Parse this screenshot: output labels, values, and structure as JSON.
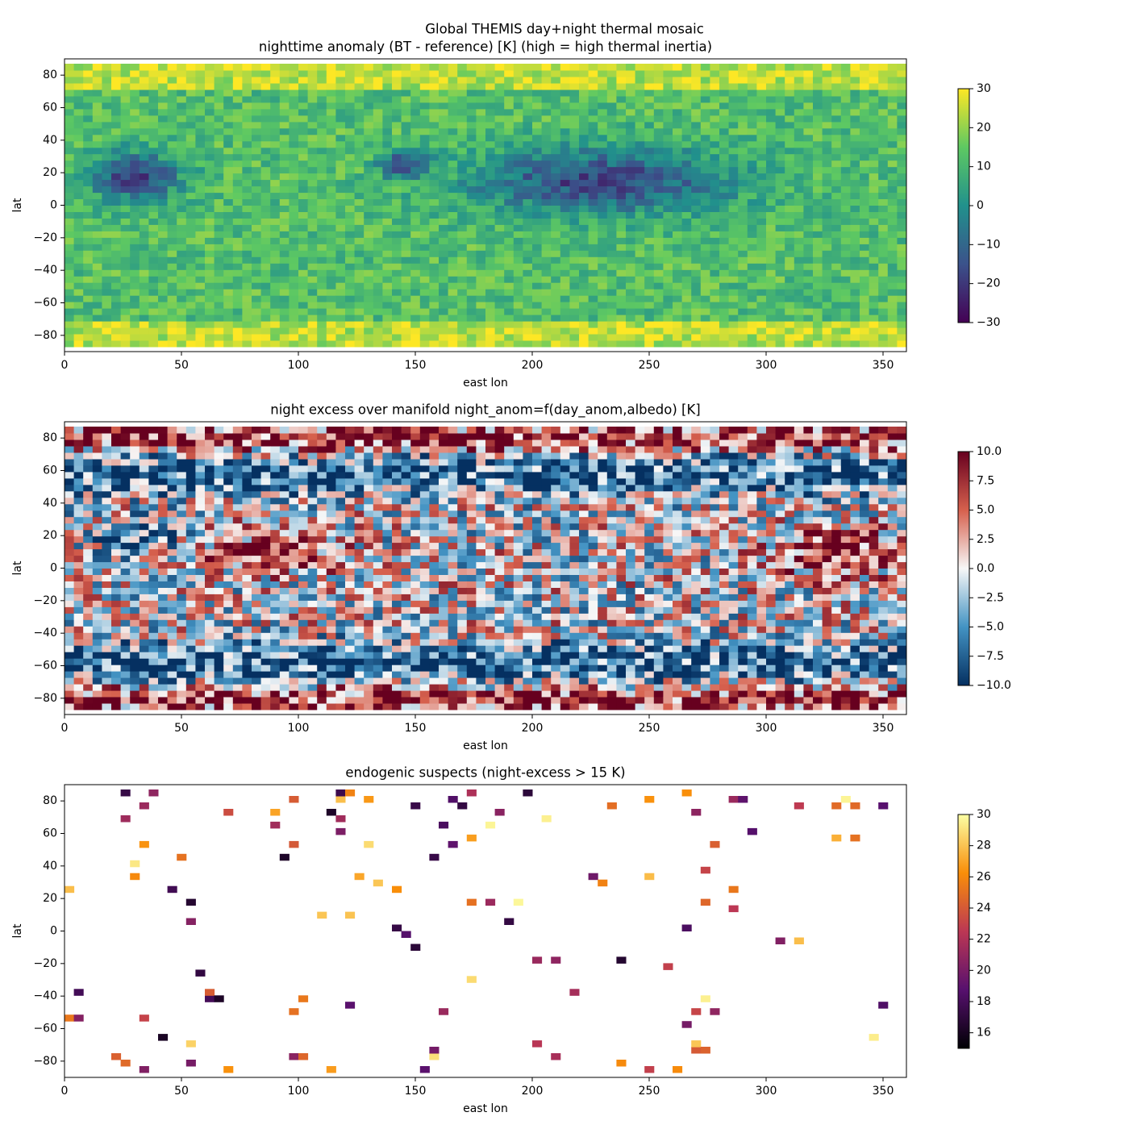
{
  "suptitle": "Global THEMIS day+night thermal mosaic",
  "chart_data": [
    {
      "type": "heatmap",
      "title": "nighttime anomaly (BT - reference) [K]  (high = high thermal inertia)",
      "xlabel": "east lon",
      "ylabel": "lat",
      "xlim": [
        0,
        360
      ],
      "xticks": [
        0,
        50,
        100,
        150,
        200,
        250,
        300,
        350
      ],
      "ylim": [
        -90,
        90
      ],
      "yticks": [
        {
          "value": -80,
          "label": "−80"
        },
        {
          "value": -60,
          "label": "−60"
        },
        {
          "value": -40,
          "label": "−40"
        },
        {
          "value": -20,
          "label": "−20"
        },
        0,
        20,
        40,
        60,
        80
      ],
      "colormap": [
        "#440154",
        "#3b528b",
        "#21918c",
        "#5ec962",
        "#fde725"
      ],
      "clim": [
        -30,
        30
      ],
      "cticks": [
        {
          "value": -30,
          "label": "−30"
        },
        {
          "value": -20,
          "label": "−20"
        },
        {
          "value": -10,
          "label": "−10"
        },
        0,
        10,
        20,
        30
      ]
    },
    {
      "type": "heatmap",
      "title": "night excess over manifold night_anom=f(day_anom,albedo) [K]",
      "xlabel": "east lon",
      "ylabel": "lat",
      "xlim": [
        0,
        360
      ],
      "xticks": [
        0,
        50,
        100,
        150,
        200,
        250,
        300,
        350
      ],
      "ylim": [
        -90,
        90
      ],
      "yticks": [
        {
          "value": -80,
          "label": "−80"
        },
        {
          "value": -60,
          "label": "−60"
        },
        {
          "value": -40,
          "label": "−40"
        },
        {
          "value": -20,
          "label": "−20"
        },
        0,
        20,
        40,
        60,
        80
      ],
      "colormap": [
        "#053061",
        "#4393c3",
        "#f7f7f7",
        "#d6604d",
        "#67001f"
      ],
      "clim": [
        -10,
        10
      ],
      "cticks": [
        {
          "value": -10,
          "label": "−10.0"
        },
        {
          "value": -7.5,
          "label": "−7.5"
        },
        {
          "value": -5,
          "label": "−5.0"
        },
        {
          "value": -2.5,
          "label": "−2.5"
        },
        {
          "value": 0,
          "label": "0.0"
        },
        2.5,
        {
          "value": 5,
          "label": "5.0"
        },
        7.5,
        {
          "value": 10,
          "label": "10.0"
        }
      ]
    },
    {
      "type": "heatmap",
      "title": "endogenic suspects (night-excess > 15 K)",
      "xlabel": "east lon",
      "ylabel": "lat",
      "xlim": [
        0,
        360
      ],
      "xticks": [
        0,
        50,
        100,
        150,
        200,
        250,
        300,
        350
      ],
      "ylim": [
        -90,
        90
      ],
      "yticks": [
        {
          "value": -80,
          "label": "−80"
        },
        {
          "value": -60,
          "label": "−60"
        },
        {
          "value": -40,
          "label": "−40"
        },
        {
          "value": -20,
          "label": "−20"
        },
        0,
        20,
        40,
        60,
        80
      ],
      "colormap": [
        "#000004",
        "#57106e",
        "#bc3754",
        "#f98e09",
        "#fcffa4"
      ],
      "clim": [
        15,
        30
      ],
      "cticks": [
        16,
        18,
        20,
        22,
        24,
        26,
        28,
        30
      ]
    }
  ]
}
